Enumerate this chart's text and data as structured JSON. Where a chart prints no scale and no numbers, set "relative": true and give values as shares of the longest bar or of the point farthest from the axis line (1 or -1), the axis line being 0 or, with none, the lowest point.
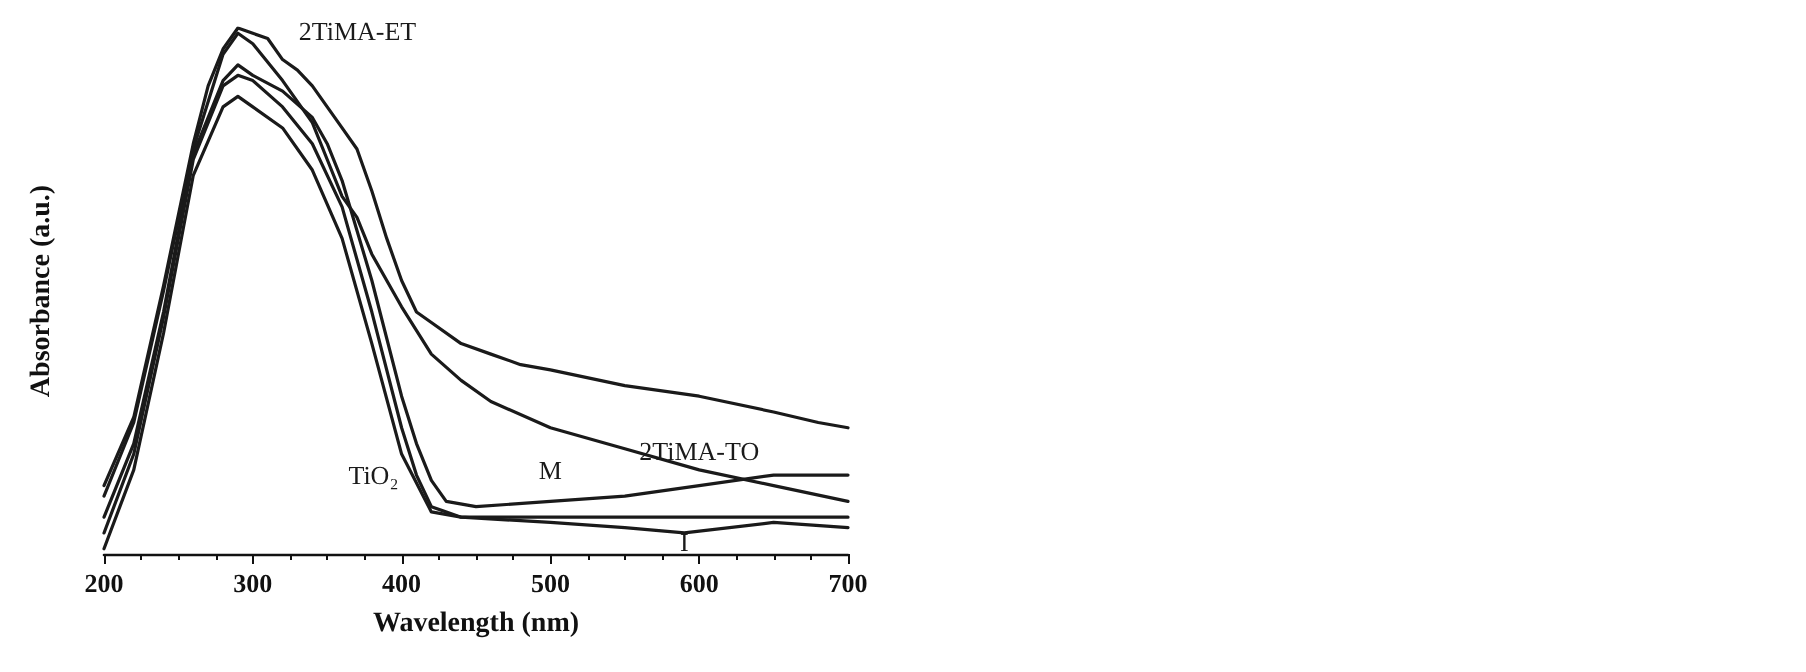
{
  "chart_data": {
    "type": "line",
    "xlabel": "Wavelength (nm)",
    "ylabel": "Absorbance (a.u.)",
    "relative": true,
    "xlim": [
      200,
      700
    ],
    "xticks": [
      200,
      300,
      400,
      500,
      600,
      700
    ],
    "grid": false,
    "legend": false,
    "marker": "none",
    "line_style": "solid",
    "series": [
      {
        "name": "2TiMA-ET",
        "color": "#1a1a1a",
        "x": [
          200,
          220,
          240,
          260,
          270,
          280,
          290,
          300,
          310,
          320,
          330,
          340,
          350,
          360,
          370,
          380,
          390,
          400,
          410,
          420,
          440,
          460,
          480,
          500,
          550,
          600,
          650,
          680,
          700
        ],
        "values": [
          0.13,
          0.26,
          0.51,
          0.78,
          0.89,
          0.96,
          1.0,
          0.99,
          0.98,
          0.94,
          0.92,
          0.89,
          0.85,
          0.81,
          0.77,
          0.69,
          0.6,
          0.52,
          0.46,
          0.44,
          0.4,
          0.38,
          0.36,
          0.35,
          0.32,
          0.3,
          0.27,
          0.25,
          0.24
        ]
      },
      {
        "name": "2TiMA-TO",
        "color": "#1a1a1a",
        "x": [
          200,
          220,
          240,
          260,
          280,
          290,
          300,
          320,
          340,
          350,
          360,
          370,
          380,
          400,
          420,
          440,
          460,
          500,
          550,
          600,
          650,
          700
        ],
        "values": [
          0.11,
          0.25,
          0.5,
          0.77,
          0.95,
          0.99,
          0.97,
          0.9,
          0.82,
          0.75,
          0.68,
          0.64,
          0.57,
          0.47,
          0.38,
          0.33,
          0.29,
          0.24,
          0.2,
          0.16,
          0.13,
          0.1
        ]
      },
      {
        "name": "M",
        "color": "#1a1a1a",
        "x": [
          200,
          220,
          240,
          260,
          280,
          290,
          300,
          320,
          340,
          350,
          360,
          380,
          400,
          410,
          420,
          430,
          450,
          500,
          550,
          600,
          650,
          700
        ],
        "values": [
          0.07,
          0.21,
          0.46,
          0.76,
          0.9,
          0.93,
          0.91,
          0.88,
          0.83,
          0.78,
          0.71,
          0.52,
          0.3,
          0.21,
          0.14,
          0.1,
          0.09,
          0.1,
          0.11,
          0.13,
          0.15,
          0.15
        ]
      },
      {
        "name": "TiO₂",
        "color": "#1a1a1a",
        "x": [
          200,
          220,
          240,
          260,
          280,
          290,
          300,
          320,
          340,
          360,
          380,
          400,
          410,
          420,
          440,
          500,
          550,
          600,
          650,
          700
        ],
        "values": [
          0.04,
          0.19,
          0.45,
          0.75,
          0.89,
          0.91,
          0.9,
          0.85,
          0.78,
          0.66,
          0.46,
          0.24,
          0.15,
          0.09,
          0.07,
          0.07,
          0.07,
          0.07,
          0.07,
          0.07
        ]
      },
      {
        "name": "I",
        "color": "#1a1a1a",
        "x": [
          200,
          220,
          240,
          260,
          280,
          290,
          300,
          320,
          340,
          360,
          380,
          400,
          420,
          440,
          500,
          550,
          590,
          650,
          700
        ],
        "values": [
          0.01,
          0.16,
          0.42,
          0.72,
          0.85,
          0.87,
          0.85,
          0.81,
          0.73,
          0.6,
          0.4,
          0.19,
          0.08,
          0.07,
          0.06,
          0.05,
          0.04,
          0.06,
          0.05
        ]
      }
    ]
  }
}
